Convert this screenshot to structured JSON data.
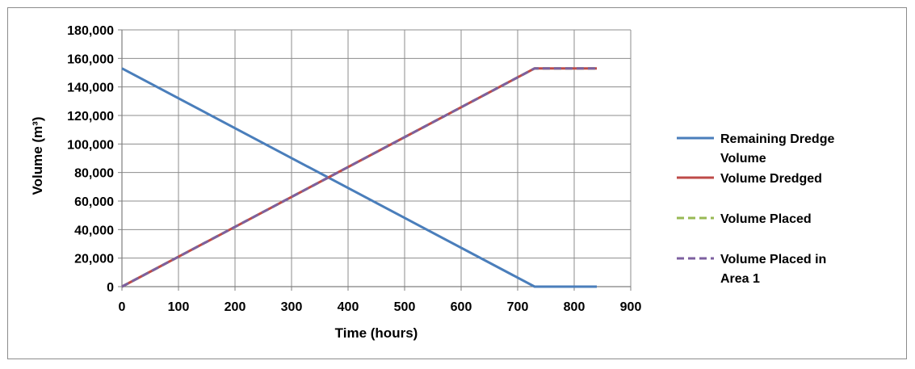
{
  "chart_data": {
    "type": "line",
    "title": "",
    "xlabel": "Time (hours)",
    "ylabel": "Volume (m³)",
    "xlim": [
      0,
      900
    ],
    "ylim": [
      0,
      180000
    ],
    "x_ticks": [
      "0",
      "100",
      "200",
      "300",
      "400",
      "500",
      "600",
      "700",
      "800",
      "900"
    ],
    "y_ticks": [
      "0",
      "20,000",
      "40,000",
      "60,000",
      "80,000",
      "100,000",
      "120,000",
      "140,000",
      "160,000",
      "180,000"
    ],
    "grid": true,
    "legend_position": "right",
    "series": [
      {
        "name": "Remaining Dredge Volume",
        "legend_lines": [
          "Remaining Dredge",
          "Volume"
        ],
        "color": "#4a7ebb",
        "dash": "solid",
        "points": [
          [
            0,
            153000
          ],
          [
            730,
            0
          ],
          [
            840,
            0
          ]
        ]
      },
      {
        "name": "Volume Dredged",
        "legend_lines": [
          " Volume Dredged"
        ],
        "color": "#be4b48",
        "dash": "solid",
        "points": [
          [
            0,
            0
          ],
          [
            730,
            153000
          ],
          [
            840,
            153000
          ]
        ]
      },
      {
        "name": "Volume Placed",
        "legend_lines": [
          " Volume Placed"
        ],
        "color": "#98b954",
        "dash": "dashed",
        "points": [
          [
            0,
            0
          ],
          [
            730,
            153000
          ],
          [
            840,
            153000
          ]
        ]
      },
      {
        "name": "Volume Placed in Area 1",
        "legend_lines": [
          " Volume Placed in",
          " Area 1"
        ],
        "color": "#7d60a0",
        "dash": "dashed",
        "points": [
          [
            0,
            0
          ],
          [
            730,
            153000
          ],
          [
            840,
            153000
          ]
        ]
      }
    ]
  }
}
